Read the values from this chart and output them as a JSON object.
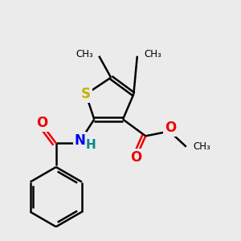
{
  "background_color": "#ebebeb",
  "bond_color": "#000000",
  "S_color": "#c8b000",
  "N_color": "#0000ee",
  "H_color": "#008888",
  "O_color": "#ee0000",
  "bond_width": 1.8,
  "figsize": [
    3.0,
    3.0
  ],
  "dpi": 100,
  "xlim": [
    0,
    10
  ],
  "ylim": [
    0,
    10
  ]
}
